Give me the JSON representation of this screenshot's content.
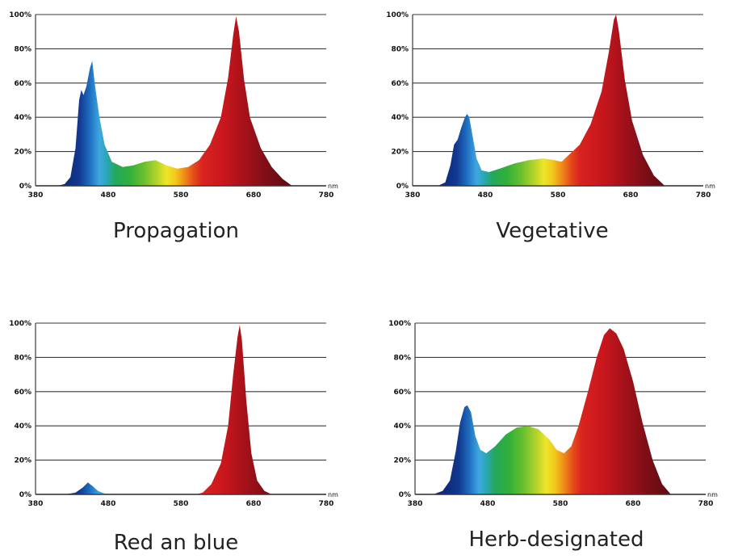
{
  "chart_data": [
    {
      "type": "area",
      "title": "Propagation",
      "x_unit": "nm",
      "x_ticks": [
        380,
        480,
        580,
        680,
        780
      ],
      "y_tick_labels": [
        "0%",
        "20%",
        "40%",
        "60%",
        "80%",
        "100%"
      ],
      "y_ticks": [
        0,
        20,
        40,
        60,
        80,
        100
      ],
      "xlim": [
        380,
        780
      ],
      "ylim": [
        0,
        100
      ],
      "grid": true,
      "points": [
        [
          410,
          0
        ],
        [
          420,
          1
        ],
        [
          428,
          5
        ],
        [
          435,
          22
        ],
        [
          440,
          50
        ],
        [
          443,
          56
        ],
        [
          446,
          53
        ],
        [
          450,
          58
        ],
        [
          455,
          69
        ],
        [
          458,
          73
        ],
        [
          462,
          58
        ],
        [
          468,
          40
        ],
        [
          475,
          24
        ],
        [
          485,
          14
        ],
        [
          500,
          11
        ],
        [
          515,
          12
        ],
        [
          530,
          14
        ],
        [
          545,
          15
        ],
        [
          560,
          12
        ],
        [
          575,
          10
        ],
        [
          590,
          11
        ],
        [
          605,
          15
        ],
        [
          620,
          24
        ],
        [
          635,
          40
        ],
        [
          645,
          63
        ],
        [
          652,
          88
        ],
        [
          656,
          99
        ],
        [
          660,
          90
        ],
        [
          667,
          62
        ],
        [
          675,
          40
        ],
        [
          690,
          22
        ],
        [
          705,
          11
        ],
        [
          720,
          4
        ],
        [
          733,
          0
        ]
      ]
    },
    {
      "type": "area",
      "title": "Vegetative",
      "x_unit": "nm",
      "x_ticks": [
        380,
        480,
        580,
        680,
        780
      ],
      "y_tick_labels": [
        "0%",
        "20%",
        "40%",
        "60%",
        "80%",
        "100%"
      ],
      "y_ticks": [
        0,
        20,
        40,
        60,
        80,
        100
      ],
      "xlim": [
        380,
        780
      ],
      "ylim": [
        0,
        100
      ],
      "grid": true,
      "points": [
        [
          415,
          0
        ],
        [
          425,
          2
        ],
        [
          432,
          12
        ],
        [
          437,
          24
        ],
        [
          442,
          27
        ],
        [
          447,
          34
        ],
        [
          452,
          40
        ],
        [
          455,
          42
        ],
        [
          458,
          40
        ],
        [
          463,
          28
        ],
        [
          468,
          16
        ],
        [
          475,
          9
        ],
        [
          485,
          8
        ],
        [
          500,
          10
        ],
        [
          520,
          13
        ],
        [
          540,
          15
        ],
        [
          560,
          16
        ],
        [
          575,
          15
        ],
        [
          585,
          14
        ],
        [
          595,
          18
        ],
        [
          610,
          24
        ],
        [
          625,
          36
        ],
        [
          640,
          55
        ],
        [
          650,
          78
        ],
        [
          657,
          97
        ],
        [
          660,
          100
        ],
        [
          664,
          90
        ],
        [
          672,
          62
        ],
        [
          682,
          38
        ],
        [
          697,
          18
        ],
        [
          712,
          6
        ],
        [
          727,
          0
        ]
      ]
    },
    {
      "type": "area",
      "title": "Red an blue",
      "x_unit": "nm",
      "x_ticks": [
        380,
        480,
        580,
        680,
        780
      ],
      "y_tick_labels": [
        "0%",
        "20%",
        "40%",
        "60%",
        "80%",
        "100%"
      ],
      "y_ticks": [
        0,
        20,
        40,
        60,
        80,
        100
      ],
      "xlim": [
        380,
        780
      ],
      "ylim": [
        0,
        100
      ],
      "grid": true,
      "points": [
        [
          420,
          0
        ],
        [
          435,
          1
        ],
        [
          445,
          4
        ],
        [
          452,
          7
        ],
        [
          458,
          5
        ],
        [
          466,
          2
        ],
        [
          475,
          0.5
        ],
        [
          490,
          0
        ],
        [
          600,
          0
        ],
        [
          610,
          1
        ],
        [
          622,
          6
        ],
        [
          635,
          18
        ],
        [
          645,
          40
        ],
        [
          652,
          70
        ],
        [
          658,
          92
        ],
        [
          661,
          99
        ],
        [
          664,
          90
        ],
        [
          670,
          55
        ],
        [
          677,
          24
        ],
        [
          685,
          8
        ],
        [
          695,
          2
        ],
        [
          705,
          0
        ]
      ]
    },
    {
      "type": "area",
      "title": "Herb-designated",
      "x_unit": "nm",
      "x_ticks": [
        380,
        480,
        580,
        680,
        780
      ],
      "y_tick_labels": [
        "0%",
        "20%",
        "40%",
        "60%",
        "80%",
        "100%"
      ],
      "y_ticks": [
        0,
        20,
        40,
        60,
        80,
        100
      ],
      "xlim": [
        380,
        780
      ],
      "ylim": [
        0,
        100
      ],
      "grid": true,
      "points": [
        [
          405,
          0
        ],
        [
          418,
          2
        ],
        [
          428,
          8
        ],
        [
          436,
          25
        ],
        [
          442,
          42
        ],
        [
          448,
          51
        ],
        [
          452,
          52
        ],
        [
          457,
          48
        ],
        [
          463,
          34
        ],
        [
          470,
          26
        ],
        [
          478,
          24
        ],
        [
          490,
          28
        ],
        [
          505,
          35
        ],
        [
          520,
          39
        ],
        [
          535,
          40
        ],
        [
          550,
          38
        ],
        [
          565,
          32
        ],
        [
          575,
          26
        ],
        [
          585,
          24
        ],
        [
          595,
          28
        ],
        [
          605,
          40
        ],
        [
          618,
          60
        ],
        [
          630,
          80
        ],
        [
          640,
          93
        ],
        [
          648,
          97
        ],
        [
          657,
          94
        ],
        [
          667,
          85
        ],
        [
          680,
          66
        ],
        [
          693,
          42
        ],
        [
          707,
          20
        ],
        [
          720,
          6
        ],
        [
          732,
          0
        ]
      ]
    }
  ]
}
